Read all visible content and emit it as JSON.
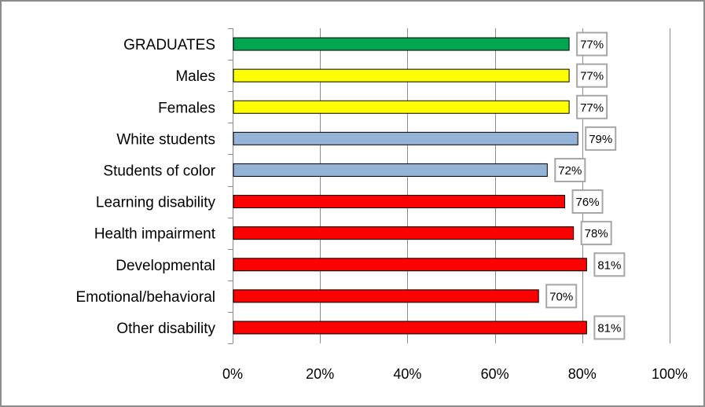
{
  "chart_data": {
    "type": "bar",
    "orientation": "horizontal",
    "categories": [
      "GRADUATES",
      "Males",
      "Females",
      "White students",
      "Students of color",
      "Learning disability",
      "Health impairment",
      "Developmental",
      "Emotional/behavioral",
      "Other disability"
    ],
    "values": [
      77,
      77,
      77,
      79,
      72,
      76,
      78,
      81,
      70,
      81
    ],
    "data_labels": [
      "77%",
      "77%",
      "77%",
      "79%",
      "72%",
      "76%",
      "78%",
      "81%",
      "70%",
      "81%"
    ],
    "bar_colors": [
      "#00a651",
      "#ffff00",
      "#ffff00",
      "#95b3d7",
      "#95b3d7",
      "#ff0000",
      "#ff0000",
      "#ff0000",
      "#ff0000",
      "#ff0000"
    ],
    "xlim": [
      0,
      100
    ],
    "x_ticks": [
      0,
      20,
      40,
      60,
      80,
      100
    ],
    "x_tick_labels": [
      "0%",
      "20%",
      "40%",
      "60%",
      "80%",
      "100%"
    ],
    "grid": "vertical major gridlines",
    "legend": "none",
    "title": "",
    "xlabel": "",
    "ylabel": ""
  }
}
